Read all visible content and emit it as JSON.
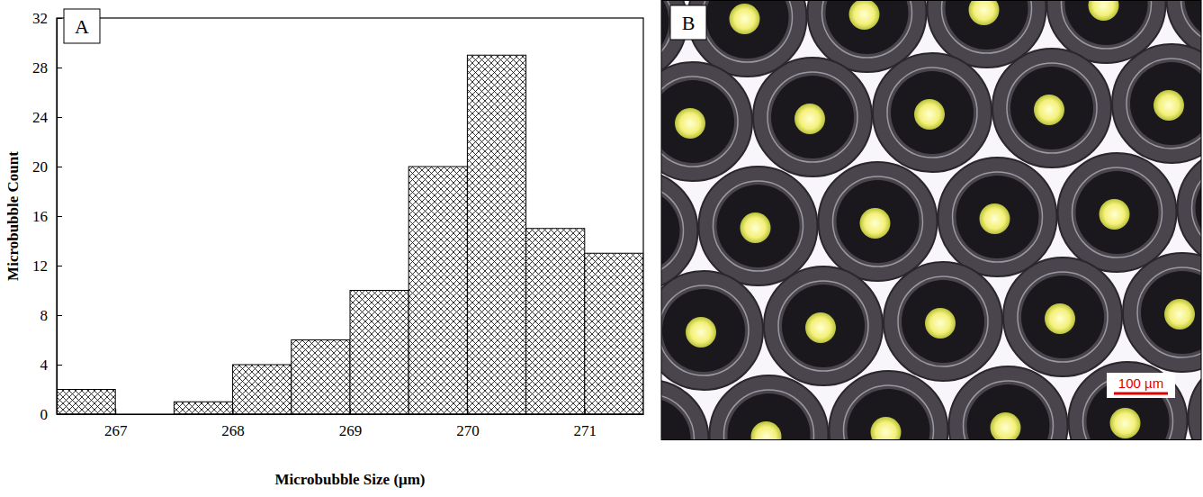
{
  "chart_data": {
    "type": "histogram",
    "panel_label": "A",
    "x_label": "Microbubble Size (μm)",
    "y_label": "Microbubble Count",
    "bins": [
      266.5,
      267,
      267.5,
      268,
      268.5,
      269,
      269.5,
      270,
      270.5,
      271,
      271.5
    ],
    "counts": [
      2,
      0,
      1,
      4,
      6,
      10,
      20,
      29,
      15,
      13
    ],
    "color": "#000000",
    "xlim": [
      266.5,
      271.5
    ],
    "ylim": [
      0,
      32
    ],
    "xticks": [
      267,
      268,
      269,
      270,
      271
    ],
    "yticks": [
      0,
      4,
      8,
      12,
      16,
      20,
      24,
      28,
      32
    ]
  },
  "image": {
    "panel_label": "B",
    "scale_bar": "100 µm"
  }
}
